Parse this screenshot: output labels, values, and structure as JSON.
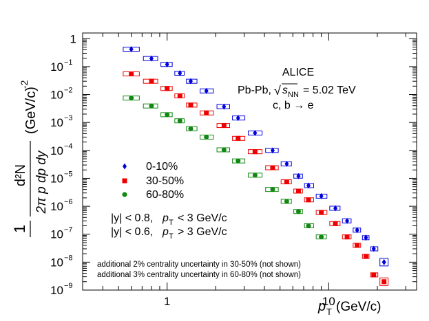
{
  "chart_data": {
    "type": "scatter",
    "x_scale": "log",
    "y_scale": "log",
    "xlim": [
      0.3,
      35
    ],
    "ylim": [
      1e-09,
      1.6
    ],
    "x_tick_labels": [
      {
        "value": 1,
        "label": "1"
      },
      {
        "value": 10,
        "label": "10"
      }
    ],
    "y_tick_labels": [
      {
        "value": 1,
        "base": "1",
        "exp": ""
      },
      {
        "value": 0.1,
        "base": "10",
        "exp": "−1"
      },
      {
        "value": 0.01,
        "base": "10",
        "exp": "−2"
      },
      {
        "value": 0.001,
        "base": "10",
        "exp": "−3"
      },
      {
        "value": 0.0001,
        "base": "10",
        "exp": "−4"
      },
      {
        "value": 1e-05,
        "base": "10",
        "exp": "−5"
      },
      {
        "value": 1e-06,
        "base": "10",
        "exp": "−6"
      },
      {
        "value": 1e-07,
        "base": "10",
        "exp": "−7"
      },
      {
        "value": 1e-08,
        "base": "10",
        "exp": "−8"
      },
      {
        "value": 1e-09,
        "base": "10",
        "exp": "−9"
      }
    ],
    "xlabel": {
      "symbol": "p",
      "subscript": "T",
      "unit": "(GeV/c)"
    },
    "ylabel": {
      "frac_num": "1",
      "frac_den": "2π p dp dy",
      "d2n": "d²N",
      "unit": "(GeV/c)",
      "unit_exp": "-2"
    },
    "experiment": "ALICE",
    "system": "Pb-Pb, √s = 5.02 TeV",
    "system_parts": {
      "pre": "Pb-Pb,",
      "sqrt_s": "s",
      "sub": "NN",
      "post": "= 5.02 TeV"
    },
    "process": "c, b → e",
    "rapidity_cuts": [
      {
        "y": "|y| < 0.8,",
        "pt": "p",
        "pt_sub": "T",
        "rest": "< 3 GeV/c"
      },
      {
        "y": "|y| < 0.6,",
        "pt": "p",
        "pt_sub": "T",
        "rest": "> 3 GeV/c"
      }
    ],
    "notes": [
      "additional 2% centrality uncertainty in 30-50% (not shown)",
      "additional 3% centrality uncertainty in 60-80% (not shown)"
    ],
    "series": [
      {
        "name": "0-10%",
        "color": "#0000dd",
        "marker": "diamond",
        "x": [
          0.6,
          0.8,
          1.0,
          1.2,
          1.4,
          1.75,
          2.25,
          2.75,
          3.5,
          4.5,
          5.5,
          6.5,
          7.5,
          9.0,
          11.0,
          13.0,
          15.0,
          17.0,
          19.0,
          22.0
        ],
        "y": [
          0.42,
          0.195,
          0.12,
          0.058,
          0.03,
          0.0135,
          0.0037,
          0.00145,
          0.00042,
          0.0001,
          3.3e-05,
          1.2e-05,
          5.5e-06,
          2.3e-06,
          8.5e-07,
          3e-07,
          1.4e-07,
          7.5e-08,
          3e-08,
          1e-08
        ]
      },
      {
        "name": "30-50%",
        "color": "#ee0000",
        "marker": "square",
        "x": [
          0.6,
          0.8,
          1.0,
          1.2,
          1.4,
          1.75,
          2.25,
          2.75,
          3.5,
          4.5,
          5.5,
          6.5,
          7.5,
          9.0,
          11.0,
          13.0,
          15.0,
          17.0,
          19.0,
          22.0
        ],
        "y": [
          0.055,
          0.03,
          0.0165,
          0.009,
          0.0042,
          0.0022,
          0.00078,
          0.00027,
          9e-05,
          2.4e-05,
          7.5e-06,
          3.5e-06,
          1.7e-06,
          6e-07,
          2.4e-07,
          8e-08,
          4e-08,
          1.6e-08,
          3.5e-09,
          2e-09
        ]
      },
      {
        "name": "60-80%",
        "color": "#118811",
        "marker": "circle",
        "x": [
          0.6,
          0.8,
          1.0,
          1.2,
          1.4,
          1.75,
          2.25,
          2.75,
          3.5,
          4.5,
          5.5,
          6.5,
          7.5,
          9.0
        ],
        "y": [
          0.0075,
          0.0039,
          0.0019,
          0.00115,
          0.0006,
          0.0003,
          0.000105,
          4.2e-05,
          1.3e-05,
          4e-06,
          1.5e-06,
          6.5e-07,
          2e-07,
          8e-08
        ]
      }
    ]
  }
}
